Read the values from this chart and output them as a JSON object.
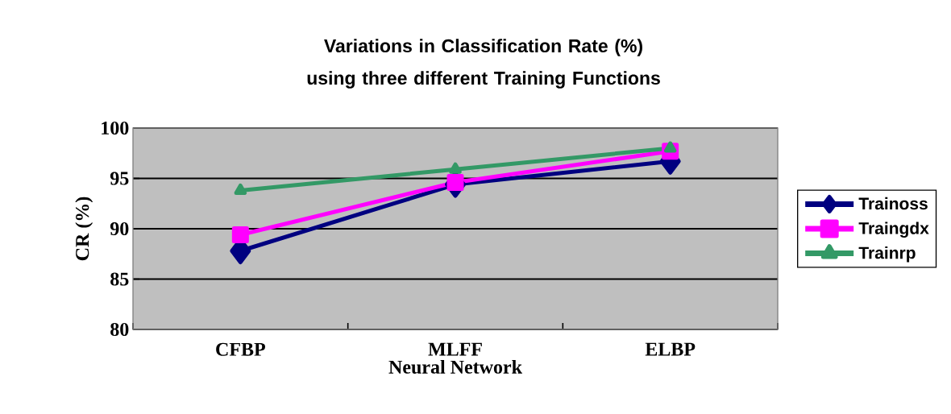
{
  "chart_data": {
    "type": "line",
    "title": "Variations in Classification Rate (%) using three different Training Functions",
    "xlabel": "Neural Network",
    "ylabel": "CR (%)",
    "categories": [
      "CFBP",
      "MLFF",
      "ELBP"
    ],
    "series": [
      {
        "name": "Trainoss",
        "color": "#000080",
        "marker": "diamond",
        "values": [
          87.8,
          94.4,
          96.7
        ]
      },
      {
        "name": "Traingdx",
        "color": "#ff00ff",
        "marker": "square",
        "values": [
          89.4,
          94.6,
          97.7
        ]
      },
      {
        "name": "Trainrp",
        "color": "#339966",
        "marker": "triangle",
        "values": [
          93.8,
          95.9,
          98.0
        ]
      }
    ],
    "ylim": [
      80,
      100
    ],
    "yticks": [
      80,
      85,
      90,
      95,
      100
    ],
    "grid": "y",
    "legend": "right"
  }
}
